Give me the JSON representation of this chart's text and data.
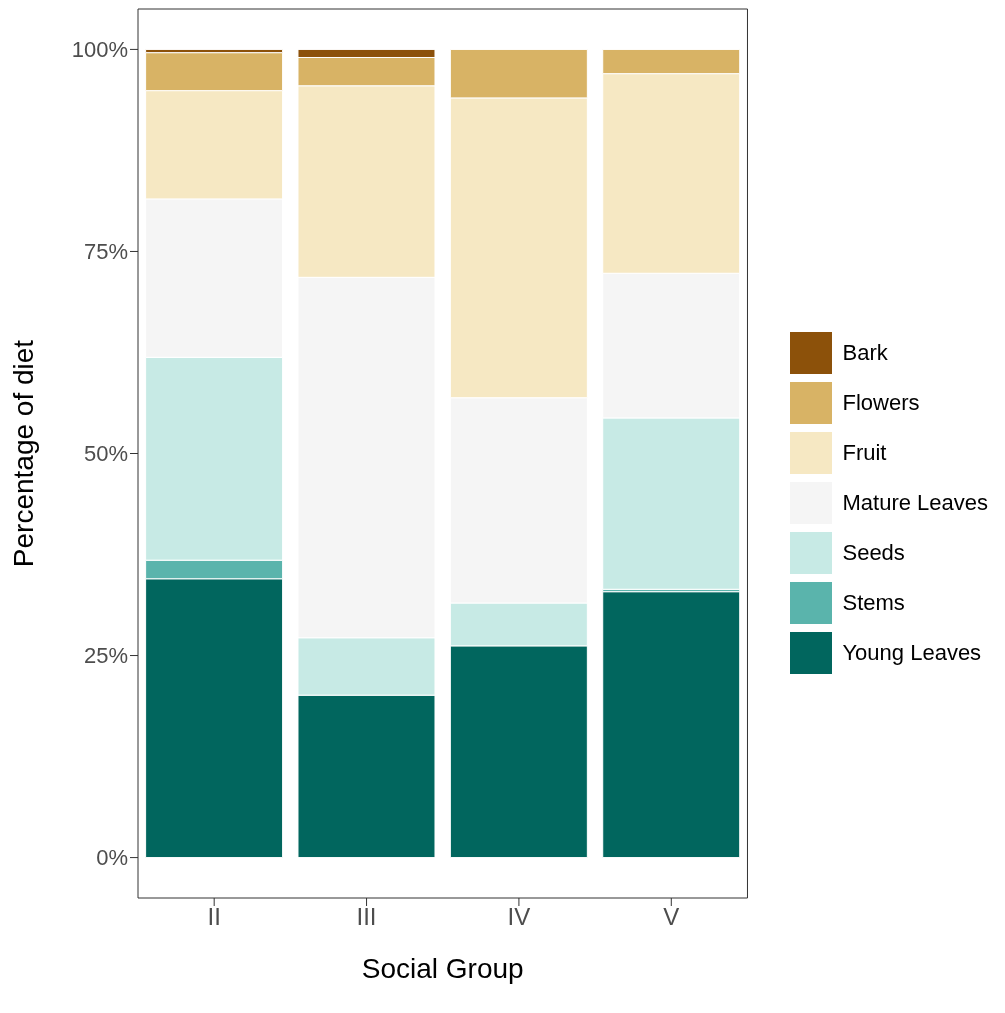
{
  "chart_data": {
    "type": "bar",
    "stacked": true,
    "xlabel": "Social Group",
    "ylabel": "Percentage of diet",
    "categories": [
      "II",
      "III",
      "IV",
      "V"
    ],
    "series": [
      {
        "name": "Young Leaves",
        "color": "#01665e",
        "values": [
          34.5,
          20.1,
          26.2,
          32.9
        ]
      },
      {
        "name": "Stems",
        "color": "#5ab4ac",
        "values": [
          2.3,
          0,
          0,
          0.3
        ]
      },
      {
        "name": "Seeds",
        "color": "#c7eae5",
        "values": [
          25.1,
          7.1,
          5.3,
          21.2
        ]
      },
      {
        "name": "Mature Leaves",
        "color": "#f5f5f5",
        "values": [
          19.6,
          44.6,
          25.4,
          17.9
        ]
      },
      {
        "name": "Fruit",
        "color": "#f6e8c3",
        "values": [
          13.4,
          23.7,
          37.1,
          24.7
        ]
      },
      {
        "name": "Flowers",
        "color": "#d8b365",
        "values": [
          4.7,
          3.5,
          6.0,
          3.0
        ]
      },
      {
        "name": "Bark",
        "color": "#8c510a",
        "values": [
          0.4,
          1.0,
          0,
          0
        ]
      }
    ],
    "ylim": [
      -5,
      105
    ],
    "yticks": [
      {
        "value": 0,
        "label": "0%"
      },
      {
        "value": 25,
        "label": "25%"
      },
      {
        "value": 50,
        "label": "50%"
      },
      {
        "value": 75,
        "label": "75%"
      },
      {
        "value": 100,
        "label": "100%"
      }
    ],
    "grid": false,
    "legend": "right"
  }
}
